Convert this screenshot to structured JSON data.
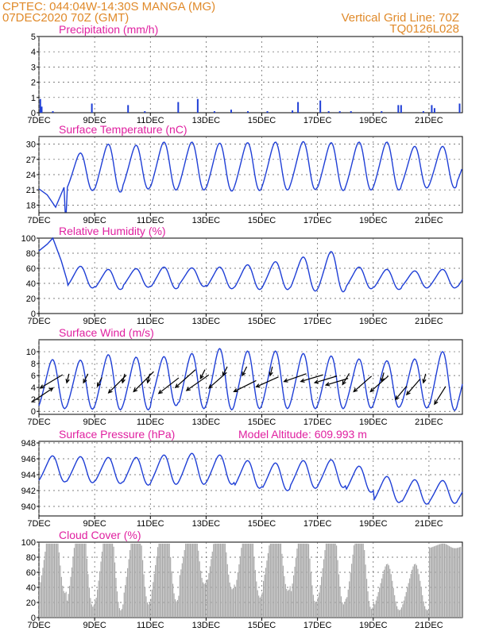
{
  "header": {
    "line1_left": "CPTEC:   044:04W-14:30S   MANGA (MG)",
    "line2_left": "07DEC2020 70Z (GMT)",
    "line1_right": "Vertical Grid Line: 70Z",
    "line2_right": "TQ0126L028"
  },
  "colors": {
    "header": "#e08a2a",
    "panel_title": "#e020a0",
    "line": "#1f3fd6",
    "wind_arrow": "#000000",
    "cloud": "#a8a8a8"
  },
  "x_axis": {
    "tick_labels": [
      "7DEC",
      "9DEC",
      "11DEC",
      "13DEC",
      "15DEC",
      "17DEC",
      "19DEC",
      "21DEC"
    ],
    "tick_days": [
      7,
      9,
      11,
      13,
      15,
      17,
      19,
      21
    ],
    "day_range": [
      7,
      22.2
    ]
  },
  "chart_data": [
    {
      "id": "precip",
      "type": "bar",
      "title": "Precipitation (mm/h)",
      "ylim": [
        0,
        5
      ],
      "yticks": [
        0,
        1,
        2,
        3,
        4,
        5
      ],
      "grid": true,
      "bars": [
        [
          7.05,
          0.9
        ],
        [
          7.1,
          0.4
        ],
        [
          7.5,
          0.1
        ],
        [
          8.9,
          0.6
        ],
        [
          10.2,
          0.5
        ],
        [
          10.8,
          0.1
        ],
        [
          12.0,
          0.7
        ],
        [
          12.7,
          0.9
        ],
        [
          13.3,
          0.1
        ],
        [
          13.9,
          0.2
        ],
        [
          14.5,
          0.1
        ],
        [
          15.2,
          0.1
        ],
        [
          16.1,
          0.15
        ],
        [
          16.3,
          0.7
        ],
        [
          17.1,
          0.8
        ],
        [
          17.4,
          0.1
        ],
        [
          17.8,
          0.1
        ],
        [
          18.2,
          0.1
        ],
        [
          19.3,
          0.1
        ],
        [
          19.9,
          0.5
        ],
        [
          20.0,
          0.5
        ],
        [
          20.8,
          0.1
        ],
        [
          21.1,
          0.5
        ],
        [
          21.2,
          0.3
        ],
        [
          22.1,
          0.6
        ]
      ]
    },
    {
      "id": "temp",
      "type": "line",
      "title": "Surface Temperature (nC)",
      "ylim": [
        16.5,
        31.5
      ],
      "yticks": [
        18,
        21,
        24,
        27,
        30
      ],
      "grid": true,
      "amp": [
        5.2,
        3.6,
        4.6,
        4.2,
        4.6,
        4.6,
        4.6,
        4.6,
        4.6,
        4.6,
        4.6,
        4.6,
        4.6,
        4.0,
        4.0,
        3.4
      ],
      "mean": [
        20.0,
        24.5,
        25.2,
        25.4,
        25.6,
        25.6,
        25.4,
        25.5,
        25.6,
        25.7,
        25.5,
        25.6,
        25.6,
        25.4,
        25.4,
        25.6
      ],
      "points": [
        [
          7.0,
          21.2
        ],
        [
          7.3,
          20.0
        ],
        [
          7.6,
          17.6
        ],
        [
          7.9,
          21.5
        ]
      ]
    },
    {
      "id": "rh",
      "type": "line",
      "title": "Relative Humidity (%)",
      "ylim": [
        0,
        100
      ],
      "yticks": [
        0,
        20,
        40,
        60,
        80,
        100
      ],
      "grid": true,
      "amp": [
        20,
        14,
        13,
        12,
        14,
        12,
        14,
        16,
        18,
        22,
        26,
        14,
        13,
        11,
        12,
        13
      ],
      "mean": [
        85,
        48,
        45,
        47,
        47,
        48,
        47,
        48,
        50,
        52,
        55,
        47,
        45,
        45,
        46,
        46
      ],
      "points": [
        [
          7.0,
          83
        ],
        [
          7.3,
          92
        ],
        [
          7.5,
          100
        ],
        [
          7.8,
          70
        ],
        [
          8.0,
          45
        ]
      ]
    },
    {
      "id": "wind",
      "type": "line",
      "title": "Surface Wind (m/s)",
      "ylim": [
        -0.5,
        12
      ],
      "yticks": [
        0,
        2,
        4,
        6,
        8,
        10
      ],
      "grid": true,
      "amp": [
        4.0,
        4.0,
        4.5,
        4.3,
        4.0,
        4.5,
        5.0,
        4.7,
        4.7,
        4.5,
        4.3,
        4.0,
        3.8,
        4.0,
        4.8,
        4.3
      ],
      "mean": [
        4.5,
        4.4,
        4.8,
        4.6,
        5.0,
        5.0,
        5.3,
        5.2,
        5.2,
        5.0,
        4.8,
        4.6,
        4.5,
        4.6,
        5.0,
        4.8
      ],
      "arrows": [
        [
          7.05,
          3.9,
          1.0,
          0.6
        ],
        [
          7.5,
          3.9,
          -0.9,
          -0.6
        ],
        [
          8.0,
          4.8,
          0.1,
          0.4
        ],
        [
          8.6,
          4.8,
          0.2,
          0.4
        ],
        [
          9.1,
          4.2,
          0.2,
          0.4
        ],
        [
          9.5,
          3.1,
          0.8,
          0.8
        ],
        [
          10.0,
          4.8,
          0.1,
          0.4
        ],
        [
          10.4,
          3.3,
          0.9,
          0.9
        ],
        [
          10.9,
          4.8,
          0.1,
          0.4
        ],
        [
          11.3,
          3.0,
          0.9,
          0.7
        ],
        [
          11.9,
          4.0,
          0.9,
          0.8
        ],
        [
          12.3,
          3.5,
          1.0,
          0.7
        ],
        [
          12.8,
          5.5,
          0.2,
          0.4
        ],
        [
          13.1,
          3.9,
          0.8,
          0.7
        ],
        [
          13.6,
          6.0,
          0.2,
          0.4
        ],
        [
          14.0,
          3.3,
          1.0,
          0.5
        ],
        [
          14.3,
          6.0,
          0.2,
          0.4
        ],
        [
          14.8,
          4.1,
          1.0,
          0.45
        ],
        [
          15.3,
          6.0,
          0.1,
          0.4
        ],
        [
          15.8,
          5.0,
          1.0,
          0.35
        ],
        [
          16.4,
          5.0,
          1.0,
          0.3
        ],
        [
          16.9,
          4.8,
          1.0,
          0.3
        ],
        [
          17.3,
          4.4,
          1.0,
          0.3
        ],
        [
          17.9,
          4.5,
          0.3,
          0.5
        ],
        [
          18.3,
          3.3,
          0.8,
          0.7
        ],
        [
          18.9,
          3.3,
          0.8,
          0.7
        ],
        [
          19.3,
          5.0,
          0.1,
          0.4
        ],
        [
          19.8,
          2.0,
          0.5,
          0.6
        ],
        [
          20.2,
          2.8,
          0.6,
          0.7
        ],
        [
          20.8,
          4.8,
          0.1,
          0.4
        ],
        [
          21.2,
          1.2,
          0.5,
          0.8
        ]
      ],
      "arrow_scale": 40
    },
    {
      "id": "pres",
      "type": "line",
      "title": "Surface Pressure (hPa)",
      "subtitle": "Model Altitude: 609.993 m",
      "ylim": [
        938.8,
        948.2
      ],
      "yticks": [
        940,
        942,
        944,
        946,
        948
      ],
      "grid": true,
      "amp": [
        1.6,
        1.6,
        1.6,
        1.7,
        1.8,
        1.9,
        1.8,
        1.7,
        1.7,
        1.7,
        1.7,
        1.6,
        1.6,
        1.5,
        1.4,
        1.4
      ],
      "mean": [
        944.7,
        944.6,
        944.5,
        944.4,
        944.6,
        944.7,
        944.6,
        944.0,
        943.7,
        944.0,
        944.1,
        943.4,
        942.1,
        941.8,
        941.8,
        941.9
      ]
    },
    {
      "id": "cloud",
      "type": "area",
      "title": "Cloud Cover (%)",
      "ylim": [
        0,
        100
      ],
      "yticks": [
        0,
        20,
        40,
        60,
        80,
        100
      ],
      "grid": true,
      "mean": [
        88,
        80,
        75,
        78,
        82,
        90,
        88,
        82,
        86,
        80,
        78,
        72,
        40,
        40,
        95,
        95
      ],
      "amp": [
        55,
        65,
        65,
        60,
        60,
        45,
        50,
        55,
        50,
        60,
        60,
        60,
        30,
        30,
        3,
        3
      ]
    }
  ]
}
